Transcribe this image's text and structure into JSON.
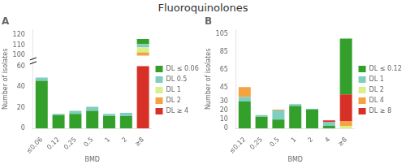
{
  "title": "Fluoroquinolones",
  "chart_data": [
    {
      "type": "bar",
      "panel_label": "A",
      "xlabel": "BMD",
      "ylabel": "Number of isolates",
      "categories": [
        "≤0.06",
        "0.12",
        "0.25",
        "0.5",
        "1",
        "2",
        "≥8"
      ],
      "series": [
        {
          "name": "DL ≤ 0.06",
          "color": "#33a02c",
          "values": [
            46,
            13,
            14,
            17,
            12,
            12,
            0
          ]
        },
        {
          "name": "DL 0.5",
          "color": "#80cdc1",
          "values": [
            3,
            1,
            3,
            4,
            2,
            3,
            0
          ]
        },
        {
          "name": "DL 1",
          "color": "#d9ef8b",
          "values": [
            0,
            0,
            0,
            0,
            0,
            0,
            0
          ]
        },
        {
          "name": "DL 2",
          "color": "#f4a340",
          "values": [
            0,
            0,
            0,
            0,
            0,
            0,
            0
          ]
        },
        {
          "name": "DL ≥ 4",
          "color": "#d73027",
          "values": [
            0,
            0,
            0,
            0,
            0,
            0,
            60
          ]
        }
      ],
      "upper_stack": {
        "category": "≥8",
        "base": 100,
        "series": [
          "DL 2",
          "DL 1",
          "DL 0.5",
          "DL ≤ 0.06"
        ],
        "values": [
          3,
          5,
          3,
          5
        ]
      },
      "stacked": true,
      "ybreak": [
        60,
        100
      ],
      "ylim": [
        0,
        125
      ],
      "yticks": [
        0,
        20,
        40,
        60,
        100,
        110,
        120
      ],
      "grid": false,
      "legend": "right"
    },
    {
      "type": "bar",
      "panel_label": "B",
      "xlabel": "BMD",
      "ylabel": "Number of isolates",
      "categories": [
        "≤0.12",
        "0.25",
        "0.5",
        "1",
        "2",
        "4",
        "≥8"
      ],
      "series": [
        {
          "name": "DL ≤ 0.12",
          "color": "#33a02c",
          "values": [
            30,
            13,
            10,
            25,
            21,
            3,
            0
          ]
        },
        {
          "name": "DL 1",
          "color": "#80cdc1",
          "values": [
            5,
            2,
            10,
            2,
            1,
            4,
            0
          ]
        },
        {
          "name": "DL 2",
          "color": "#d9ef8b",
          "values": [
            0,
            0,
            0,
            0,
            0,
            0,
            3
          ]
        },
        {
          "name": "DL 4",
          "color": "#f4a340",
          "values": [
            11,
            0,
            1,
            0,
            0,
            0,
            5
          ]
        },
        {
          "name": "DL ≥ 8",
          "color": "#d73027",
          "values": [
            0,
            0,
            0,
            0,
            0,
            2,
            30
          ]
        }
      ],
      "top_layer": {
        "name": "DL ≤ 0.12",
        "values": [
          0,
          0,
          0,
          0,
          0,
          0,
          62
        ]
      },
      "stacked": true,
      "ylim": [
        0,
        110
      ],
      "yticks": [
        0,
        10,
        20,
        30,
        45,
        65,
        85,
        105
      ],
      "grid": false,
      "legend": "right"
    }
  ]
}
